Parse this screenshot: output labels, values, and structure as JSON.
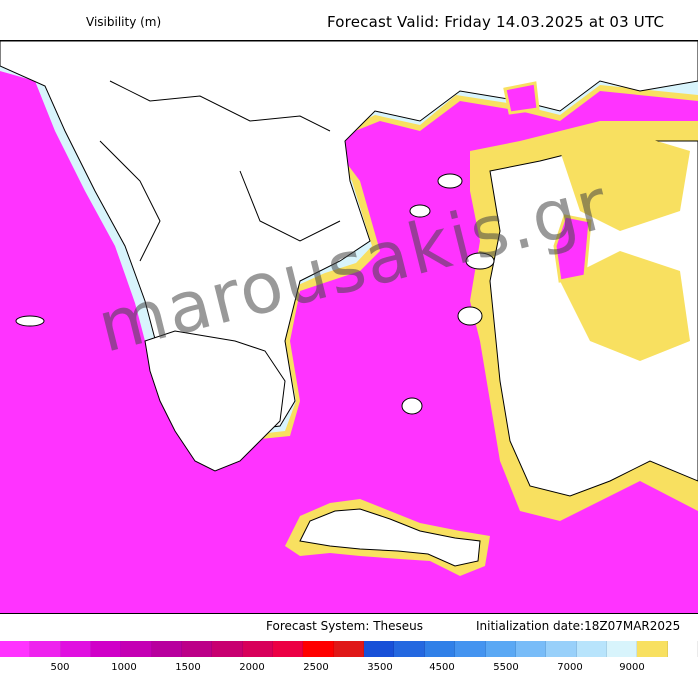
{
  "header": {
    "variable_label": "Visibility (m)",
    "valid_label": "Forecast Valid:  Friday 14.03.2025 at 03 UTC"
  },
  "watermark": "marousakis.gr",
  "footer": {
    "system_label": "Forecast System: Theseus",
    "init_label": "Initialization date:18Z07MAR2025"
  },
  "legend": {
    "colors": [
      "#ff33ff",
      "#ee22ee",
      "#e010e0",
      "#d000c8",
      "#c400b4",
      "#b8009e",
      "#bc0088",
      "#c80070",
      "#d8005a",
      "#ec0044",
      "#ff0000",
      "#e01818",
      "#1850d8",
      "#2468e0",
      "#3080e8",
      "#4494f0",
      "#5aa8f4",
      "#78bcf8",
      "#98d0fa",
      "#b8e4fc",
      "#d8f4fc",
      "#f8e060",
      "#ffffff"
    ],
    "ticks": [
      {
        "label": "500",
        "pos": 60
      },
      {
        "label": "1000",
        "pos": 124
      },
      {
        "label": "1500",
        "pos": 188
      },
      {
        "label": "2000",
        "pos": 252
      },
      {
        "label": "2500",
        "pos": 316
      },
      {
        "label": "3500",
        "pos": 380
      },
      {
        "label": "4500",
        "pos": 442
      },
      {
        "label": "5500",
        "pos": 506
      },
      {
        "label": "7000",
        "pos": 570
      },
      {
        "label": "9000",
        "pos": 632
      }
    ]
  }
}
